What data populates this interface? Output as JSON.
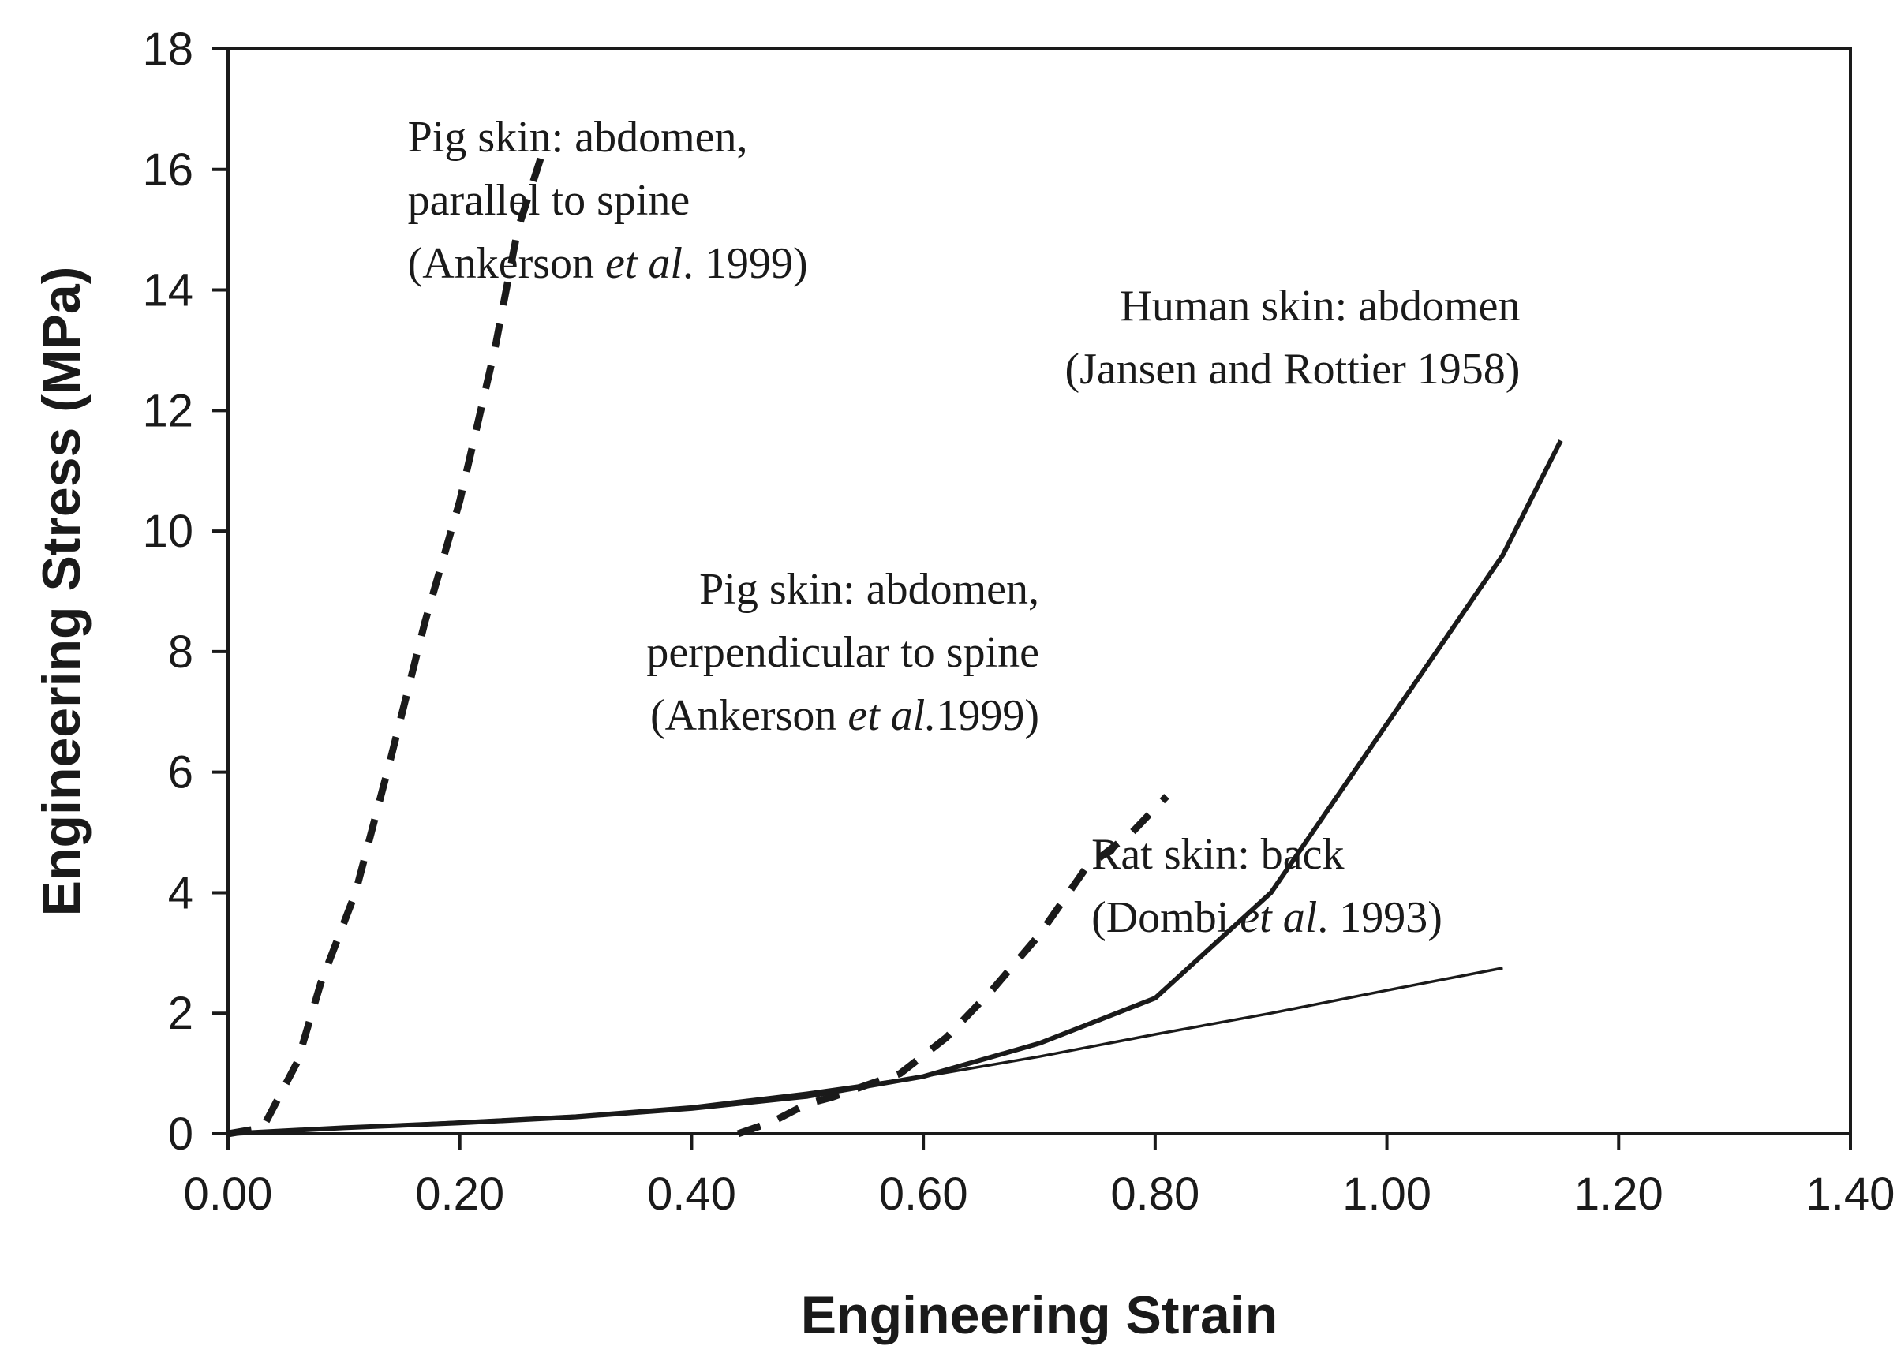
{
  "chart_data": {
    "type": "line",
    "xlabel": "Engineering Strain",
    "ylabel": "Engineering Stress (MPa)",
    "xlim": [
      0,
      1.4
    ],
    "ylim": [
      0,
      18
    ],
    "x_ticks": [
      "0.00",
      "0.20",
      "0.40",
      "0.60",
      "0.80",
      "1.00",
      "1.20",
      "1.40"
    ],
    "y_ticks": [
      "0",
      "2",
      "4",
      "6",
      "8",
      "10",
      "12",
      "14",
      "16",
      "18"
    ],
    "grid": false,
    "series": [
      {
        "key": "pig-parallel",
        "style": "dashed",
        "color": "#1a1a1a",
        "x": [
          0.0,
          0.03,
          0.06,
          0.08,
          0.11,
          0.14,
          0.17,
          0.2,
          0.23,
          0.25,
          0.27
        ],
        "y": [
          0.0,
          0.1,
          1.2,
          2.5,
          4.0,
          6.2,
          8.5,
          10.5,
          13.0,
          15.0,
          16.2
        ]
      },
      {
        "key": "pig-perpendicular",
        "style": "dashed",
        "color": "#1a1a1a",
        "x": [
          0.44,
          0.47,
          0.5,
          0.52,
          0.55,
          0.58,
          0.62,
          0.66,
          0.7,
          0.74,
          0.78,
          0.81
        ],
        "y": [
          0.0,
          0.2,
          0.5,
          0.6,
          0.8,
          1.0,
          1.6,
          2.4,
          3.3,
          4.4,
          5.0,
          5.6
        ]
      },
      {
        "key": "human-abdomen",
        "style": "solid-thick",
        "color": "#1a1a1a",
        "x": [
          0.0,
          0.1,
          0.2,
          0.3,
          0.4,
          0.5,
          0.6,
          0.7,
          0.8,
          0.9,
          1.0,
          1.1,
          1.15
        ],
        "y": [
          0.0,
          0.1,
          0.18,
          0.28,
          0.42,
          0.62,
          0.95,
          1.5,
          2.25,
          4.0,
          6.8,
          9.6,
          11.5
        ]
      },
      {
        "key": "rat-back",
        "style": "solid-thin",
        "color": "#1a1a1a",
        "x": [
          0.0,
          0.1,
          0.2,
          0.3,
          0.4,
          0.5,
          0.6,
          0.7,
          0.8,
          0.9,
          1.0,
          1.1
        ],
        "y": [
          0.0,
          0.1,
          0.2,
          0.3,
          0.45,
          0.68,
          0.95,
          1.28,
          1.65,
          2.0,
          2.38,
          2.75
        ]
      }
    ],
    "annotations": [
      {
        "key": "pig-parallel-label",
        "align": "start",
        "x": 0.155,
        "y": 16.3,
        "lines": [
          [
            {
              "t": "Pig skin: abdomen,"
            }
          ],
          [
            {
              "t": "parallel to spine"
            }
          ],
          [
            {
              "t": "(Ankerson "
            },
            {
              "t": "et al",
              "it": true
            },
            {
              "t": ". 1999)"
            }
          ]
        ]
      },
      {
        "key": "human-label",
        "align": "end",
        "x": 1.115,
        "y": 13.5,
        "lines": [
          [
            {
              "t": "Human skin: abdomen"
            }
          ],
          [
            {
              "t": "(Jansen and Rottier 1958)"
            }
          ]
        ]
      },
      {
        "key": "pig-perpendicular-label",
        "align": "end",
        "x": 0.7,
        "y": 8.8,
        "lines": [
          [
            {
              "t": "Pig skin: abdomen,"
            }
          ],
          [
            {
              "t": "perpendicular to spine"
            }
          ],
          [
            {
              "t": "(Ankerson "
            },
            {
              "t": "et al.",
              "it": true
            },
            {
              "t": "1999)"
            }
          ]
        ]
      },
      {
        "key": "rat-label",
        "align": "start",
        "x": 0.745,
        "y": 4.4,
        "lines": [
          [
            {
              "t": "Rat skin: back"
            }
          ],
          [
            {
              "t": "(Dombi "
            },
            {
              "t": "et al",
              "it": true
            },
            {
              "t": ". 1993)"
            }
          ]
        ]
      }
    ]
  }
}
